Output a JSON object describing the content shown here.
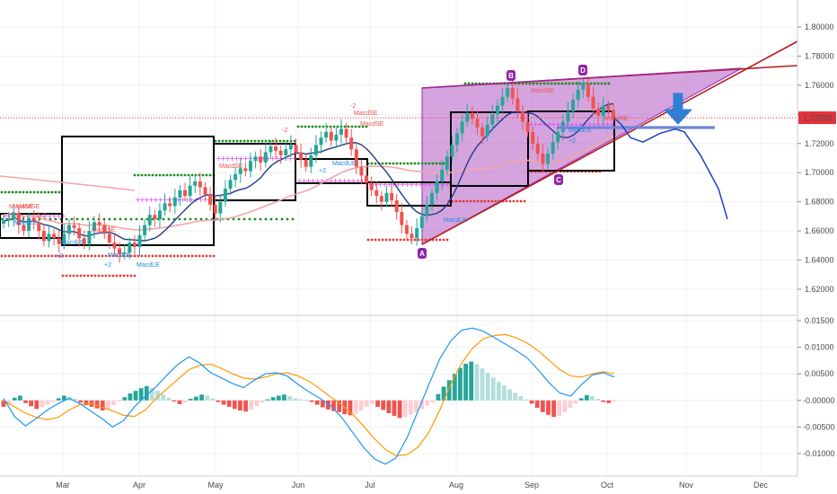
{
  "colors": {
    "background": "#ffffff",
    "grid": "#eef0f3",
    "up_candle": "#26a69a",
    "down_candle": "#ef5350",
    "price_line": "#e5323b",
    "price_tag": "#e5323b",
    "wedge_fill": "#9c27b0",
    "wedge_line": "#9c27b0",
    "trend_line": "#b71c1c",
    "forecast": "#1e3fbf",
    "arrow": "#2f7fd6",
    "support": "#6f86d6",
    "macd": "#2196f3",
    "signal": "#ff9800",
    "hist_up_strong": "#26a69a",
    "hist_up_weak": "#b2dfdb",
    "hist_down_strong": "#ef5350",
    "hist_down_weak": "#ffcdd2",
    "ma_blue": "#1f3c88",
    "ma_pink": "#f3a6a6",
    "dots_green": "#1b8a1b",
    "dots_red": "#e53935",
    "dots_magenta": "#e040fb"
  },
  "price_tag": "1.73768",
  "pivot_labels": {
    "A": "A",
    "B": "B",
    "C": "C",
    "D": "D"
  },
  "annotations": {
    "macd_se": "MacdSE",
    "macd_le": "MacdLE",
    "minus2": "-2",
    "plus2": "+2"
  },
  "chart_data": [
    {
      "type": "line",
      "panel": "price",
      "title": "",
      "ylim": [
        1.6,
        1.81
      ],
      "yticks": [
        "1.80000",
        "1.78000",
        "1.76000",
        "1.74000",
        "1.72000",
        "1.70000",
        "1.68000",
        "1.66000",
        "1.64000",
        "1.62000"
      ],
      "xticks": [
        "Mar",
        "Apr",
        "May",
        "Jun",
        "Jul",
        "Aug",
        "Sep",
        "Oct",
        "Nov",
        "Dec"
      ],
      "series": [
        {
          "values": [
            1.667,
            1.668,
            1.672,
            1.664,
            1.66,
            1.669,
            1.666,
            1.66,
            1.653,
            1.658,
            1.655,
            1.651,
            1.658,
            1.664,
            1.662,
            1.655,
            1.651,
            1.66,
            1.666,
            1.664,
            1.658,
            1.652,
            1.648,
            1.644,
            1.645,
            1.652,
            1.649,
            1.657,
            1.664,
            1.671,
            1.668,
            1.674,
            1.679,
            1.677,
            1.683,
            1.688,
            1.684,
            1.691,
            1.694,
            1.69,
            1.685,
            1.678,
            1.672,
            1.68,
            1.689,
            1.695,
            1.699,
            1.703,
            1.701,
            1.708,
            1.711,
            1.707,
            1.714,
            1.718,
            1.715,
            1.712,
            1.716,
            1.719,
            1.714,
            1.709,
            1.704,
            1.712,
            1.719,
            1.724,
            1.728,
            1.722,
            1.726,
            1.73,
            1.724,
            1.716,
            1.704,
            1.698,
            1.693,
            1.688,
            1.684,
            1.68,
            1.686,
            1.681,
            1.673,
            1.664,
            1.658,
            1.655,
            1.662,
            1.67,
            1.678,
            1.686,
            1.694,
            1.702,
            1.711,
            1.719,
            1.727,
            1.735,
            1.741,
            1.737,
            1.731,
            1.725,
            1.733,
            1.74,
            1.746,
            1.752,
            1.758,
            1.751,
            1.742,
            1.735,
            1.728,
            1.72,
            1.713,
            1.706,
            1.713,
            1.721,
            1.728,
            1.735,
            1.742,
            1.75,
            1.757,
            1.761,
            1.752,
            1.744,
            1.739,
            1.746,
            1.743,
            1.738
          ]
        },
        {
          "name": "forecast",
          "values": [
            1.738,
            1.733,
            1.724,
            1.721,
            1.727,
            1.73,
            1.728,
            1.712,
            1.689,
            1.668
          ]
        }
      ],
      "price_tag": 1.73768
    },
    {
      "type": "bar",
      "panel": "macd",
      "yticks": [
        "0.01500",
        "0.01000",
        "0.00500",
        "-0.00000",
        "-0.00500",
        "-0.01000"
      ],
      "ylim": [
        -0.0125,
        0.0155
      ],
      "series": [
        {
          "name": "histogram",
          "values": [
            -0.0012,
            -0.0008,
            0.0005,
            0.0009,
            -0.0005,
            -0.0011,
            -0.0016,
            -0.0013,
            -0.0008,
            -0.0003,
            0.0004,
            0.0009,
            0.0007,
            0.0003,
            -0.0004,
            -0.0009,
            -0.0012,
            -0.0015,
            -0.0019,
            -0.0016,
            -0.0009,
            -0.0002,
            0.0006,
            0.0013,
            0.0018,
            0.0023,
            0.0027,
            0.0024,
            0.0018,
            0.0011,
            0.0005,
            -0.0002,
            -0.0007,
            -0.0004,
            0.0003,
            0.0007,
            0.0011,
            0.0009,
            0.0004,
            -0.0003,
            -0.0008,
            -0.0012,
            -0.0016,
            -0.0019,
            -0.0021,
            -0.0017,
            -0.0011,
            -0.0004,
            0.0002,
            0.0006,
            0.0009,
            0.0011,
            0.0008,
            0.0004,
            0.0002,
            0.0001,
            -0.0003,
            -0.0008,
            -0.0013,
            -0.0017,
            -0.002,
            -0.0022,
            -0.0026,
            -0.0028,
            -0.0025,
            -0.0019,
            -0.0012,
            -0.0006,
            -0.0012,
            -0.0018,
            -0.0024,
            -0.0029,
            -0.0033,
            -0.0031,
            -0.0027,
            -0.0022,
            -0.0016,
            -0.001,
            -0.0004,
            0.0012,
            0.0026,
            0.0038,
            0.005,
            0.0061,
            0.0069,
            0.0073,
            0.0068,
            0.006,
            0.0052,
            0.0043,
            0.0035,
            0.0028,
            0.0021,
            0.0014,
            0.0008,
            0.0002,
            -0.0006,
            -0.0014,
            -0.0022,
            -0.0027,
            -0.0031,
            -0.0029,
            -0.0022,
            -0.0014,
            -0.0006,
            0.0004,
            0.001,
            0.0008,
            0.0003,
            -0.0003,
            -0.0005,
            -0.0002
          ]
        },
        {
          "name": "macd",
          "values": [
            0.0004,
            -0.003,
            -0.0048,
            -0.0034,
            -0.0018,
            -0.0006,
            0.0004,
            -0.0006,
            -0.002,
            -0.0034,
            -0.005,
            -0.0038,
            -0.0012,
            0.0008,
            0.0026,
            0.0048,
            0.0068,
            0.0082,
            0.007,
            0.0052,
            0.0042,
            0.0032,
            0.0024,
            0.0038,
            0.005,
            0.0052,
            0.0046,
            0.003,
            0.0016,
            0.0004,
            -0.001,
            -0.0032,
            -0.006,
            -0.0088,
            -0.011,
            -0.012,
            -0.0108,
            -0.007,
            -0.002,
            0.003,
            0.0078,
            0.0112,
            0.0132,
            0.0136,
            0.013,
            0.0118,
            0.0106,
            0.0094,
            0.008,
            0.0058,
            0.0034,
            0.0014,
            0.0008,
            0.003,
            0.0048,
            0.0052,
            0.0044
          ]
        },
        {
          "name": "signal",
          "values": [
            0.0,
            -0.0012,
            -0.0024,
            -0.0032,
            -0.0036,
            -0.0032,
            -0.0018,
            -0.0008,
            -0.0006,
            -0.0012,
            -0.002,
            -0.0028,
            -0.003,
            -0.0018,
            0.0004,
            0.0022,
            0.004,
            0.0058,
            0.0066,
            0.0068,
            0.006,
            0.005,
            0.0042,
            0.004,
            0.0044,
            0.005,
            0.0052,
            0.0046,
            0.0036,
            0.0022,
            0.0006,
            -0.0008,
            -0.0026,
            -0.0048,
            -0.0072,
            -0.0092,
            -0.0104,
            -0.0102,
            -0.0088,
            -0.006,
            -0.0018,
            0.003,
            0.007,
            0.0098,
            0.0116,
            0.0122,
            0.0124,
            0.0118,
            0.0108,
            0.0094,
            0.0076,
            0.0058,
            0.0046,
            0.0044,
            0.005,
            0.0054,
            0.005
          ]
        }
      ]
    }
  ]
}
